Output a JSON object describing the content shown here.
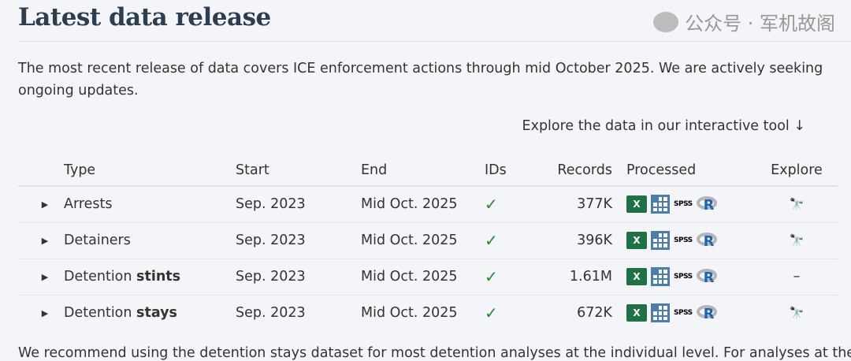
{
  "title": "Latest data release",
  "intro": "The most recent release of data covers ICE enforcement actions through mid October 2025. We are actively seeking ongoing updates.",
  "explore_link": "Explore the data in our interactive tool ↓",
  "table": {
    "headers": {
      "type": "Type",
      "start": "Start",
      "end": "End",
      "ids": "IDs",
      "records": "Records",
      "processed": "Processed",
      "explore": "Explore"
    },
    "rows": [
      {
        "type": "Arrests",
        "type_bold": "",
        "start": "Sep. 2023",
        "end": "Mid Oct. 2025",
        "ids": "✓",
        "records": "377K",
        "explore": "binoculars"
      },
      {
        "type": "Detainers",
        "type_bold": "",
        "start": "Sep. 2023",
        "end": "Mid Oct. 2025",
        "ids": "✓",
        "records": "396K",
        "explore": "binoculars"
      },
      {
        "type": "Detention ",
        "type_bold": "stints",
        "start": "Sep. 2023",
        "end": "Mid Oct. 2025",
        "ids": "✓",
        "records": "1.61M",
        "explore": "–"
      },
      {
        "type": "Detention ",
        "type_bold": "stays",
        "start": "Sep. 2023",
        "end": "Mid Oct. 2025",
        "ids": "✓",
        "records": "672K",
        "explore": "binoculars"
      }
    ],
    "processed_formats": {
      "excel": "X",
      "stata": "stata",
      "spss": "SPSS",
      "r": "R"
    }
  },
  "bottom_text": "We recommend using the detention stays dataset for most detention analyses at the individual level. For analyses at the",
  "watermark": "公众号 · 军机故阁",
  "colors": {
    "heading": "#2c3e50",
    "check": "#1e8a2e",
    "excel": "#1f7244",
    "stata": "#4a7eae",
    "r": "#1f65b7",
    "binoculars": "#253f63",
    "background": "#f3f5f8"
  }
}
